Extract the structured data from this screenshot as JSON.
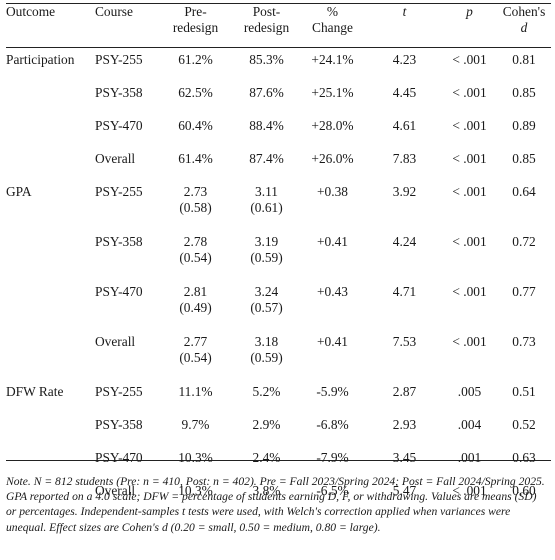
{
  "headers": {
    "outcome": "Outcome",
    "course": "Course",
    "pre_line1": "Pre-",
    "pre_line2": "redesign",
    "post_line1": "Post-",
    "post_line2": "redesign",
    "change_line1": "%",
    "change_line2": "Change",
    "t": "t",
    "p": "p",
    "d_line1": "Cohen's",
    "d_line2": "d"
  },
  "groups": [
    {
      "outcome": "Participation",
      "rows": [
        {
          "course": "PSY-255",
          "pre": "61.2%",
          "pre_sd": "",
          "post": "85.3%",
          "post_sd": "",
          "change": "+24.1%",
          "t": "4.23",
          "p": "< .001",
          "d": "0.81"
        },
        {
          "course": "PSY-358",
          "pre": "62.5%",
          "pre_sd": "",
          "post": "87.6%",
          "post_sd": "",
          "change": "+25.1%",
          "t": "4.45",
          "p": "< .001",
          "d": "0.85"
        },
        {
          "course": "PSY-470",
          "pre": "60.4%",
          "pre_sd": "",
          "post": "88.4%",
          "post_sd": "",
          "change": "+28.0%",
          "t": "4.61",
          "p": "< .001",
          "d": "0.89"
        },
        {
          "course": "Overall",
          "pre": "61.4%",
          "pre_sd": "",
          "post": "87.4%",
          "post_sd": "",
          "change": "+26.0%",
          "t": "7.83",
          "p": "< .001",
          "d": "0.85"
        }
      ]
    },
    {
      "outcome": "GPA",
      "rows": [
        {
          "course": "PSY-255",
          "pre": "2.73",
          "pre_sd": "(0.58)",
          "post": "3.11",
          "post_sd": "(0.61)",
          "change": "+0.38",
          "t": "3.92",
          "p": "< .001",
          "d": "0.64"
        },
        {
          "course": "PSY-358",
          "pre": "2.78",
          "pre_sd": "(0.54)",
          "post": "3.19",
          "post_sd": "(0.59)",
          "change": "+0.41",
          "t": "4.24",
          "p": "< .001",
          "d": "0.72"
        },
        {
          "course": "PSY-470",
          "pre": "2.81",
          "pre_sd": "(0.49)",
          "post": "3.24",
          "post_sd": "(0.57)",
          "change": "+0.43",
          "t": "4.71",
          "p": "< .001",
          "d": "0.77"
        },
        {
          "course": "Overall",
          "pre": "2.77",
          "pre_sd": "(0.54)",
          "post": "3.18",
          "post_sd": "(0.59)",
          "change": "+0.41",
          "t": "7.53",
          "p": "< .001",
          "d": "0.73"
        }
      ]
    },
    {
      "outcome": "DFW Rate",
      "rows": [
        {
          "course": "PSY-255",
          "pre": "11.1%",
          "pre_sd": "",
          "post": "5.2%",
          "post_sd": "",
          "change": "-5.9%",
          "t": "2.87",
          "p": ".005",
          "d": "0.51"
        },
        {
          "course": "PSY-358",
          "pre": "9.7%",
          "pre_sd": "",
          "post": "2.9%",
          "post_sd": "",
          "change": "-6.8%",
          "t": "2.93",
          "p": ".004",
          "d": "0.52"
        },
        {
          "course": "PSY-470",
          "pre": "10.3%",
          "pre_sd": "",
          "post": "2.4%",
          "post_sd": "",
          "change": "-7.9%",
          "t": "3.45",
          "p": ".001",
          "d": "0.63"
        },
        {
          "course": "Overall",
          "pre": "10.3%",
          "pre_sd": "",
          "post": "3.8%",
          "post_sd": "",
          "change": "-6.5%",
          "t": "5.47",
          "p": "< .001",
          "d": "0.60"
        }
      ]
    }
  ],
  "note": "Note. N = 812 students (Pre: n = 410, Post: n = 402). Pre = Fall 2023/Spring 2024; Post = Fall 2024/Spring 2025. GPA reported on a 4.0 scale; DFW = percentage of students earning D, F, or withdrawing. Values are means (SD) or percentages. Independent-samples t tests were used, with Welch's correction applied when variances were unequal. Effect sizes are Cohen's d (0.20 = small, 0.50 = medium, 0.80 = large)."
}
